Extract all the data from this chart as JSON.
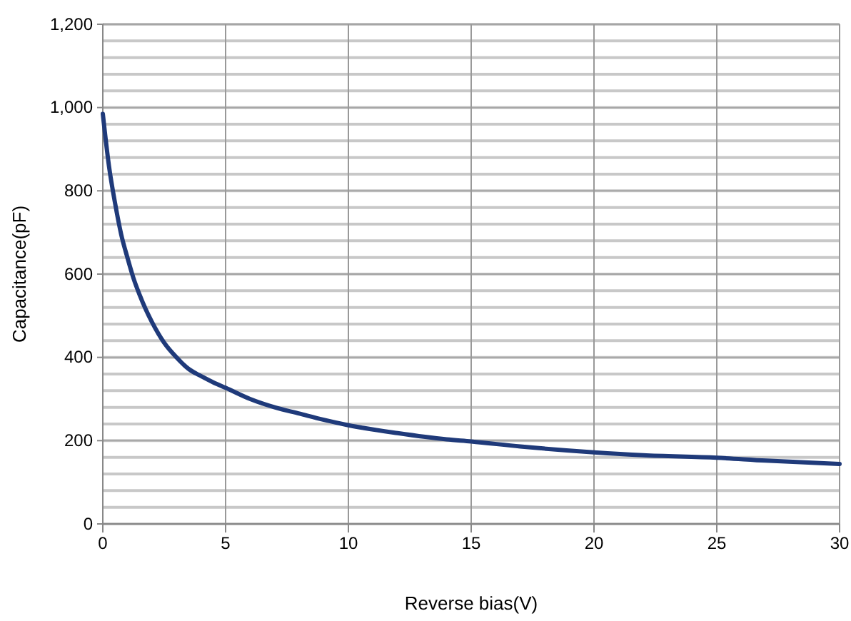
{
  "chart_data": {
    "type": "line",
    "xlabel": "Reverse bias(V)",
    "ylabel": "Capacitance(pF)",
    "x": [
      0,
      0.25,
      0.5,
      0.75,
      1,
      1.25,
      1.5,
      1.75,
      2,
      2.5,
      3,
      3.5,
      4,
      4.5,
      5,
      6,
      7,
      8,
      9,
      10,
      12,
      14,
      15,
      17,
      20,
      22,
      25,
      27,
      30
    ],
    "series": [
      {
        "color": "#1f3a7a",
        "values": [
          985,
          860,
          770,
          695,
          640,
          590,
          550,
          515,
          485,
          435,
          400,
          372,
          355,
          340,
          327,
          300,
          280,
          265,
          250,
          237,
          218,
          203,
          198,
          186,
          172,
          165,
          159,
          152,
          144
        ]
      }
    ],
    "xlim": [
      0,
      30
    ],
    "xticks": [
      0,
      5,
      10,
      15,
      20,
      25,
      30
    ],
    "ylim": [
      0,
      1200
    ],
    "yticks": [
      0,
      {
        "value": 200,
        "label": "200"
      },
      {
        "value": 400,
        "label": "400"
      },
      {
        "value": 600,
        "label": "600"
      },
      {
        "value": 800,
        "label": "800"
      },
      {
        "value": 1000,
        "label": "1,000"
      },
      {
        "value": 1200,
        "label": "1,200"
      }
    ],
    "grid": true,
    "marker": "none",
    "line_style": "solid"
  }
}
